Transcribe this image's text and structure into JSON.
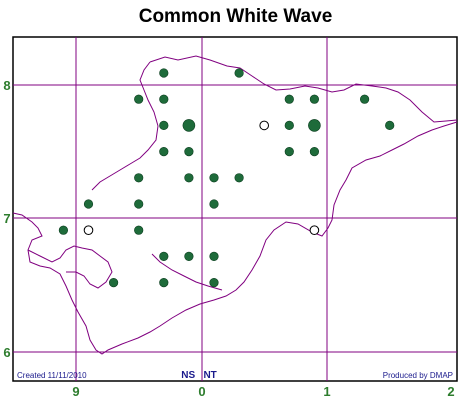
{
  "title": "Common White Wave",
  "grid": {
    "x_labels": [
      "9",
      "0",
      "1",
      "2"
    ],
    "y_labels": [
      "8",
      "7",
      "6"
    ]
  },
  "grid_reference": "NS   NT",
  "footer": {
    "created": "Created 11/11/2010",
    "produced": "Produced by DMAP"
  },
  "colors": {
    "grid_line": "#800080",
    "coast": "#800080",
    "record_fill": "#1e6b3a",
    "frame": "#000000",
    "label": "#2e7d2e",
    "footer_text": "#1a1a8c"
  },
  "records": [
    {
      "col": 3,
      "row": 1,
      "type": "filled",
      "size": "small"
    },
    {
      "col": 6,
      "row": 1,
      "type": "filled",
      "size": "small"
    },
    {
      "col": 2,
      "row": 2,
      "type": "filled",
      "size": "small"
    },
    {
      "col": 3,
      "row": 2,
      "type": "filled",
      "size": "small"
    },
    {
      "col": 8,
      "row": 2,
      "type": "filled",
      "size": "small"
    },
    {
      "col": 9,
      "row": 2,
      "type": "filled",
      "size": "small"
    },
    {
      "col": 11,
      "row": 2,
      "type": "filled",
      "size": "small"
    },
    {
      "col": 3,
      "row": 3,
      "type": "filled",
      "size": "small"
    },
    {
      "col": 4,
      "row": 3,
      "type": "filled",
      "size": "large"
    },
    {
      "col": 7,
      "row": 3,
      "type": "open",
      "size": "small"
    },
    {
      "col": 8,
      "row": 3,
      "type": "filled",
      "size": "small"
    },
    {
      "col": 9,
      "row": 3,
      "type": "filled",
      "size": "large"
    },
    {
      "col": 12,
      "row": 3,
      "type": "filled",
      "size": "small"
    },
    {
      "col": 3,
      "row": 4,
      "type": "filled",
      "size": "small"
    },
    {
      "col": 4,
      "row": 4,
      "type": "filled",
      "size": "small"
    },
    {
      "col": 8,
      "row": 4,
      "type": "filled",
      "size": "small"
    },
    {
      "col": 9,
      "row": 4,
      "type": "filled",
      "size": "small"
    },
    {
      "col": 2,
      "row": 5,
      "type": "filled",
      "size": "small"
    },
    {
      "col": 4,
      "row": 5,
      "type": "filled",
      "size": "small"
    },
    {
      "col": 5,
      "row": 5,
      "type": "filled",
      "size": "small"
    },
    {
      "col": 6,
      "row": 5,
      "type": "filled",
      "size": "small"
    },
    {
      "col": 0,
      "row": 6,
      "type": "filled",
      "size": "small"
    },
    {
      "col": 2,
      "row": 6,
      "type": "filled",
      "size": "small"
    },
    {
      "col": 5,
      "row": 6,
      "type": "filled",
      "size": "small"
    },
    {
      "col": -1,
      "row": 7,
      "type": "filled",
      "size": "small"
    },
    {
      "col": 0,
      "row": 7,
      "type": "open",
      "size": "small"
    },
    {
      "col": 2,
      "row": 7,
      "type": "filled",
      "size": "small"
    },
    {
      "col": 9,
      "row": 7,
      "type": "open",
      "size": "small"
    },
    {
      "col": 3,
      "row": 8,
      "type": "filled",
      "size": "small"
    },
    {
      "col": 4,
      "row": 8,
      "type": "filled",
      "size": "small"
    },
    {
      "col": 5,
      "row": 8,
      "type": "filled",
      "size": "small"
    },
    {
      "col": 1,
      "row": 9,
      "type": "filled",
      "size": "small"
    },
    {
      "col": 3,
      "row": 9,
      "type": "filled",
      "size": "small"
    },
    {
      "col": 5,
      "row": 9,
      "type": "filled",
      "size": "small"
    }
  ]
}
